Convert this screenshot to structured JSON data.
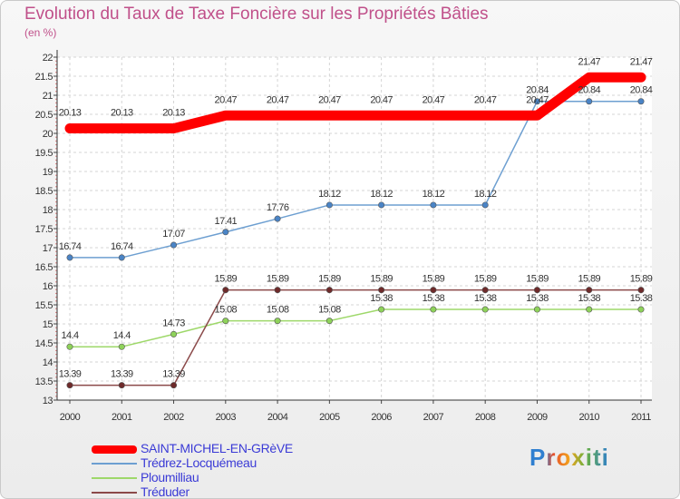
{
  "title": "Evolution du Taux de Taxe Foncière sur les Propriétés Bâties",
  "unit_label": "(en %)",
  "logo_text": "Proxiti",
  "chart_data": {
    "type": "line",
    "title": "Evolution du Taux de Taxe Foncière sur les Propriétés Bâties",
    "ylabel": "(en %)",
    "xlabel": "",
    "ylim": [
      13,
      22
    ],
    "yticks": [
      "13",
      "13.5",
      "14",
      "14.5",
      "15",
      "15.5",
      "16",
      "16.5",
      "17",
      "17.5",
      "18",
      "18.5",
      "19",
      "19.5",
      "20",
      "20.5",
      "21",
      "21.5",
      "22"
    ],
    "categories": [
      "2000",
      "2001",
      "2002",
      "2003",
      "2004",
      "2005",
      "2006",
      "2007",
      "2008",
      "2009",
      "2010",
      "2011"
    ],
    "series": [
      {
        "name": "SAINT-MICHEL-EN-GRèVE",
        "color": "#ff0000",
        "marker": "none",
        "values": [
          20.13,
          20.13,
          20.13,
          20.47,
          20.47,
          20.47,
          20.47,
          20.47,
          20.47,
          20.47,
          21.47,
          21.47
        ],
        "labels": [
          "20.13",
          "20.13",
          "20.13",
          "20.47",
          "20.47",
          "20.47",
          "20.47",
          "20.47",
          "20.47",
          "20.47",
          "21.47",
          "21.47"
        ]
      },
      {
        "name": "Trédrez-Locquémeau",
        "color": "#6d9fd1",
        "marker": "#4a84c6",
        "values": [
          16.74,
          16.74,
          17.07,
          17.41,
          17.76,
          18.12,
          18.12,
          18.12,
          18.12,
          20.84,
          20.84,
          20.84
        ],
        "labels": [
          "16.74",
          "16.74",
          "17.07",
          "17.41",
          "17.76",
          "18.12",
          "18.12",
          "18.12",
          "18.12",
          "20.84",
          "20.84",
          "20.84"
        ]
      },
      {
        "name": "Ploumilliau",
        "color": "#9ed86a",
        "marker": "#8ed25a",
        "values": [
          14.4,
          14.4,
          14.73,
          15.08,
          15.08,
          15.08,
          15.38,
          15.38,
          15.38,
          15.38,
          15.38,
          15.38
        ],
        "labels": [
          "14.4",
          "14.4",
          "14.73",
          "15.08",
          "15.08",
          "15.08",
          "15.38",
          "15.38",
          "15.38",
          "15.38",
          "15.38",
          "15.38"
        ]
      },
      {
        "name": "Tréduder",
        "color": "#8b4a4a",
        "marker": "#6e2a2a",
        "values": [
          13.39,
          13.39,
          13.39,
          15.89,
          15.89,
          15.89,
          15.89,
          15.89,
          15.89,
          15.89,
          15.89,
          15.89
        ],
        "labels": [
          "13.39",
          "13.39",
          "13.39",
          "15.89",
          "15.89",
          "15.89",
          "15.89",
          "15.89",
          "15.89",
          "15.89",
          "15.89",
          "15.89"
        ]
      }
    ]
  },
  "legend": [
    {
      "label": "SAINT-MICHEL-EN-GRèVE",
      "color": "#ff0000"
    },
    {
      "label": "Trédrez-Locquémeau",
      "color": "#6d9fd1"
    },
    {
      "label": "Ploumilliau",
      "color": "#9ed86a"
    },
    {
      "label": "Tréduder",
      "color": "#8b4a4a"
    }
  ]
}
